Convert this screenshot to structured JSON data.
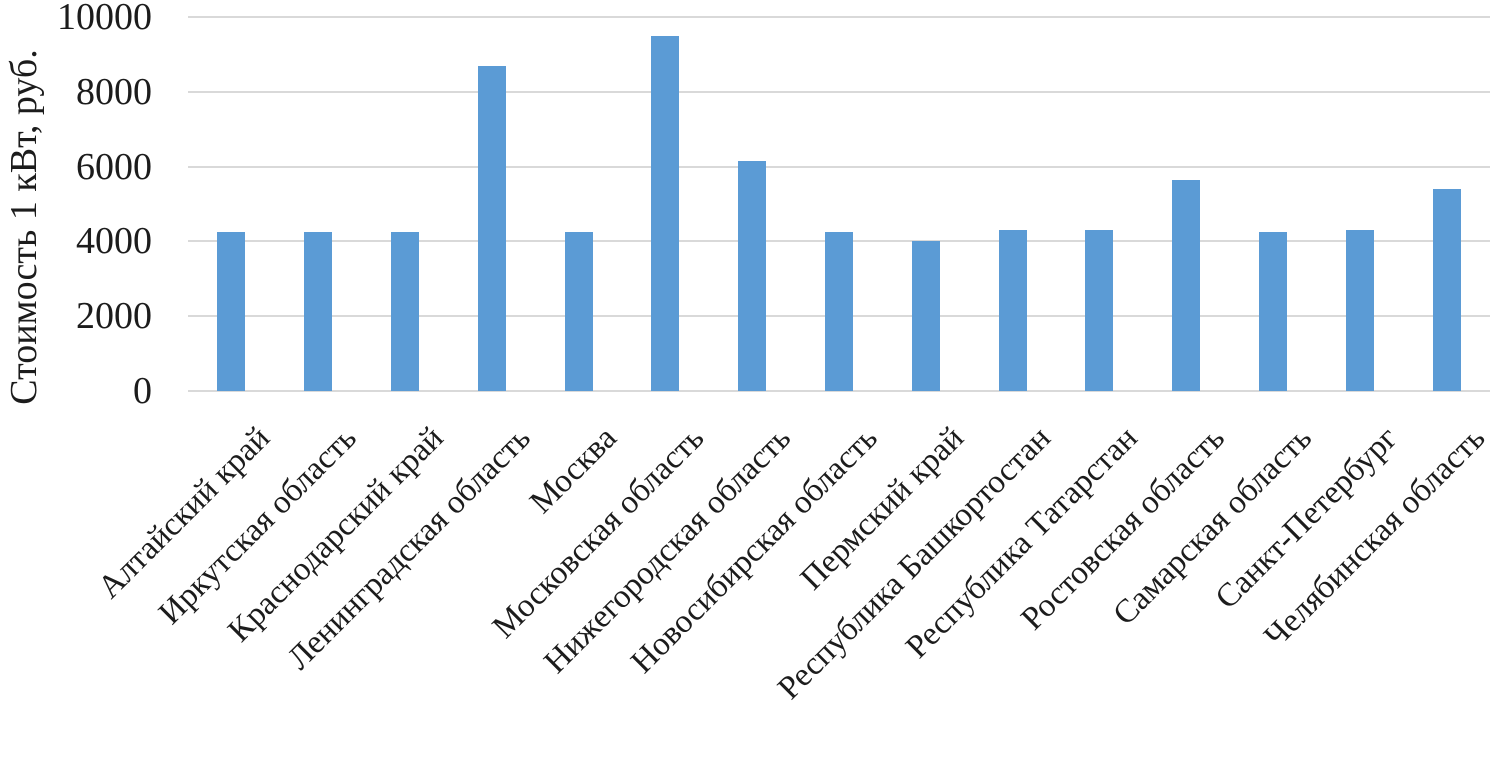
{
  "chart_data": {
    "type": "bar",
    "title": "",
    "ylabel": "Стоимость 1 кВт, руб.",
    "xlabel": "",
    "categories": [
      "Алтайский край",
      "Иркутская область",
      "Краснодарский край",
      "Ленинградская область",
      "Москва",
      "Московская область",
      "Нижегородская область",
      "Новосибирская область",
      "Пермский край",
      "Республика Башкортостан",
      "Республика Татарстан",
      "Ростовская область",
      "Самарская область",
      "Санкт-Петербург",
      "Челябинская область"
    ],
    "values": [
      4250,
      4250,
      4250,
      8700,
      4250,
      9500,
      6150,
      4250,
      4000,
      4300,
      4300,
      5650,
      4250,
      4300,
      5400
    ],
    "ylim": [
      0,
      10000
    ],
    "yticks": [
      0,
      2000,
      4000,
      6000,
      8000,
      10000
    ],
    "grid": true,
    "legend": false,
    "x_tick_rotation_deg": 45,
    "bar_color": "#5B9BD5",
    "gridline_color": "#D9D9D9",
    "text_color": "#1c1c1c"
  }
}
